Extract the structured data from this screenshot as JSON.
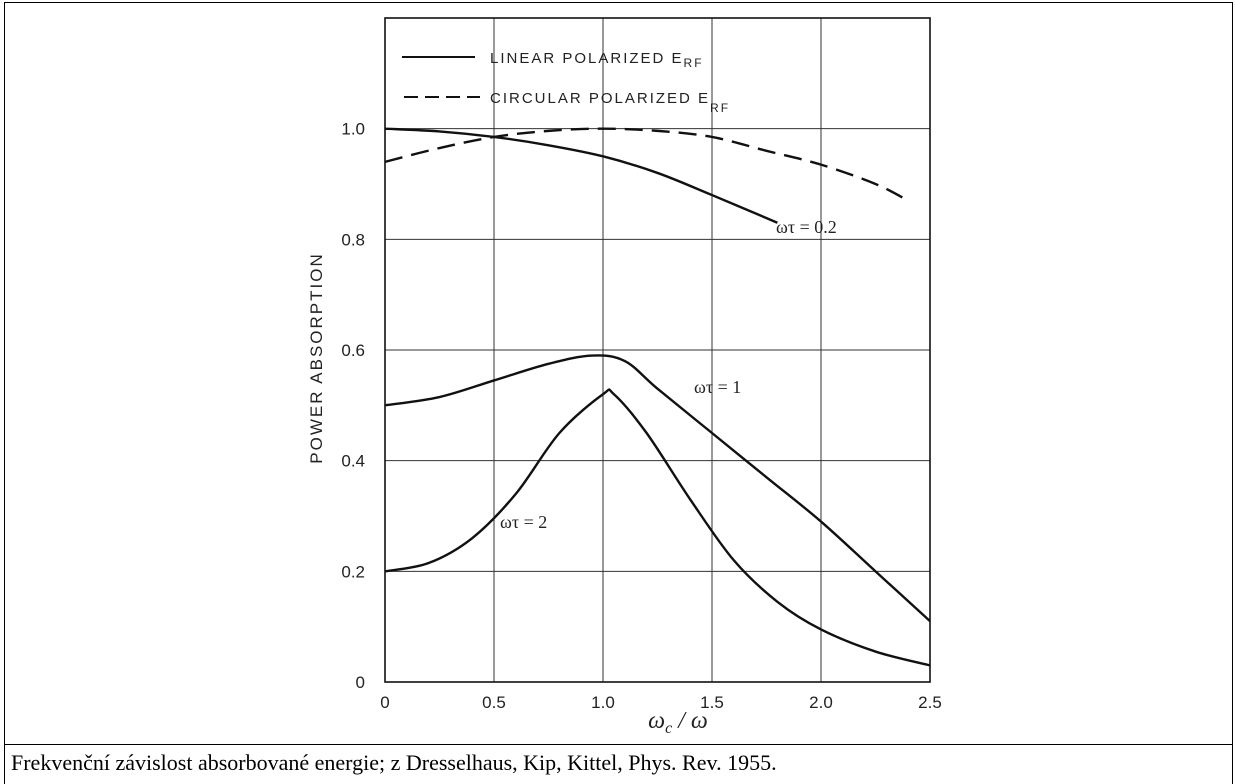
{
  "chart_data": {
    "type": "line",
    "title": "",
    "xlabel": "ωc / ω",
    "ylabel": "POWER ABSORPTION",
    "xlim": [
      0,
      2.5
    ],
    "ylim": [
      0,
      1.2
    ],
    "xticks": [
      "0",
      "0.5",
      "1.0",
      "1.5",
      "2.0",
      "2.5"
    ],
    "yticks": [
      "0",
      "0.2",
      "0.4",
      "0.6",
      "0.8",
      "1.0"
    ],
    "grid": true,
    "legend_position": "top",
    "legend": [
      {
        "label": "LINEAR POLARIZED E",
        "sub": "RF",
        "style": "solid"
      },
      {
        "label": "CIRCULAR POLARIZED E",
        "sub": "RF",
        "style": "dashed"
      }
    ],
    "series": [
      {
        "style": "solid",
        "annotation": "ωτ = 0.2",
        "x": [
          0,
          0.25,
          0.5,
          0.75,
          1.0,
          1.25,
          1.5,
          1.8
        ],
        "y": [
          1.0,
          0.995,
          0.985,
          0.97,
          0.95,
          0.92,
          0.88,
          0.83
        ]
      },
      {
        "style": "dashed",
        "x": [
          0,
          0.25,
          0.5,
          0.75,
          1.0,
          1.25,
          1.5,
          1.75,
          2.0,
          2.25,
          2.4
        ],
        "y": [
          0.94,
          0.965,
          0.985,
          0.996,
          1.0,
          0.996,
          0.985,
          0.96,
          0.935,
          0.9,
          0.87
        ]
      },
      {
        "style": "solid",
        "annotation": "ωτ = 1",
        "x": [
          0,
          0.25,
          0.5,
          0.75,
          0.95,
          1.1,
          1.25,
          1.5,
          1.75,
          2.0,
          2.25,
          2.5
        ],
        "y": [
          0.5,
          0.515,
          0.545,
          0.575,
          0.59,
          0.58,
          0.53,
          0.45,
          0.37,
          0.29,
          0.2,
          0.11
        ]
      },
      {
        "style": "solid",
        "annotation": "ωτ = 2",
        "x": [
          0,
          0.2,
          0.4,
          0.6,
          0.8,
          1.0,
          1.05,
          1.2,
          1.4,
          1.6,
          1.8,
          2.0,
          2.25,
          2.5
        ],
        "y": [
          0.2,
          0.215,
          0.26,
          0.34,
          0.45,
          0.52,
          0.52,
          0.45,
          0.33,
          0.22,
          0.145,
          0.095,
          0.055,
          0.03
        ]
      }
    ]
  },
  "caption": "Frekvenční závislost absorbované energie; z Dresselhaus, Kip, Kittel, Phys. Rev. 1955."
}
